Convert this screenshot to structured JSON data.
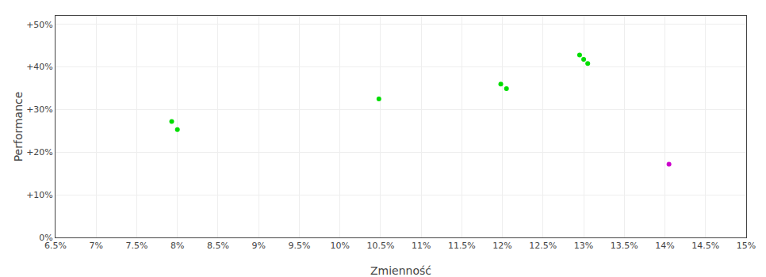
{
  "chart_data": {
    "type": "scatter",
    "xlabel": "Zmienność",
    "ylabel": "Performance",
    "xlim": [
      0.065,
      0.15
    ],
    "ylim": [
      0.0,
      0.52
    ],
    "xticks": [
      {
        "value": 0.065,
        "label": "6.5%"
      },
      {
        "value": 0.07,
        "label": "7%"
      },
      {
        "value": 0.075,
        "label": "7.5%"
      },
      {
        "value": 0.08,
        "label": "8%"
      },
      {
        "value": 0.085,
        "label": "8.5%"
      },
      {
        "value": 0.09,
        "label": "9%"
      },
      {
        "value": 0.095,
        "label": "9.5%"
      },
      {
        "value": 0.1,
        "label": "10%"
      },
      {
        "value": 0.105,
        "label": "10.5%"
      },
      {
        "value": 0.11,
        "label": "11%"
      },
      {
        "value": 0.115,
        "label": "11.5%"
      },
      {
        "value": 0.12,
        "label": "12%"
      },
      {
        "value": 0.125,
        "label": "12.5%"
      },
      {
        "value": 0.13,
        "label": "13%"
      },
      {
        "value": 0.135,
        "label": "13.5%"
      },
      {
        "value": 0.14,
        "label": "14%"
      },
      {
        "value": 0.145,
        "label": "14.5%"
      },
      {
        "value": 0.15,
        "label": "15%"
      }
    ],
    "yticks": [
      {
        "value": 0.0,
        "label": "0%"
      },
      {
        "value": 0.1,
        "label": "+10%"
      },
      {
        "value": 0.2,
        "label": "+20%"
      },
      {
        "value": 0.3,
        "label": "+30%"
      },
      {
        "value": 0.4,
        "label": "+40%"
      },
      {
        "value": 0.5,
        "label": "+50%"
      }
    ],
    "grid": true,
    "series": [
      {
        "color": "#00dd00",
        "x": [
          0.0793,
          0.08,
          0.1048,
          0.1198,
          0.1205,
          0.1295,
          0.13,
          0.1305
        ],
        "values": [
          0.272,
          0.253,
          0.325,
          0.36,
          0.349,
          0.428,
          0.418,
          0.408
        ]
      },
      {
        "color": "#cc00cc",
        "x": [
          0.1405
        ],
        "values": [
          0.172
        ]
      }
    ]
  }
}
